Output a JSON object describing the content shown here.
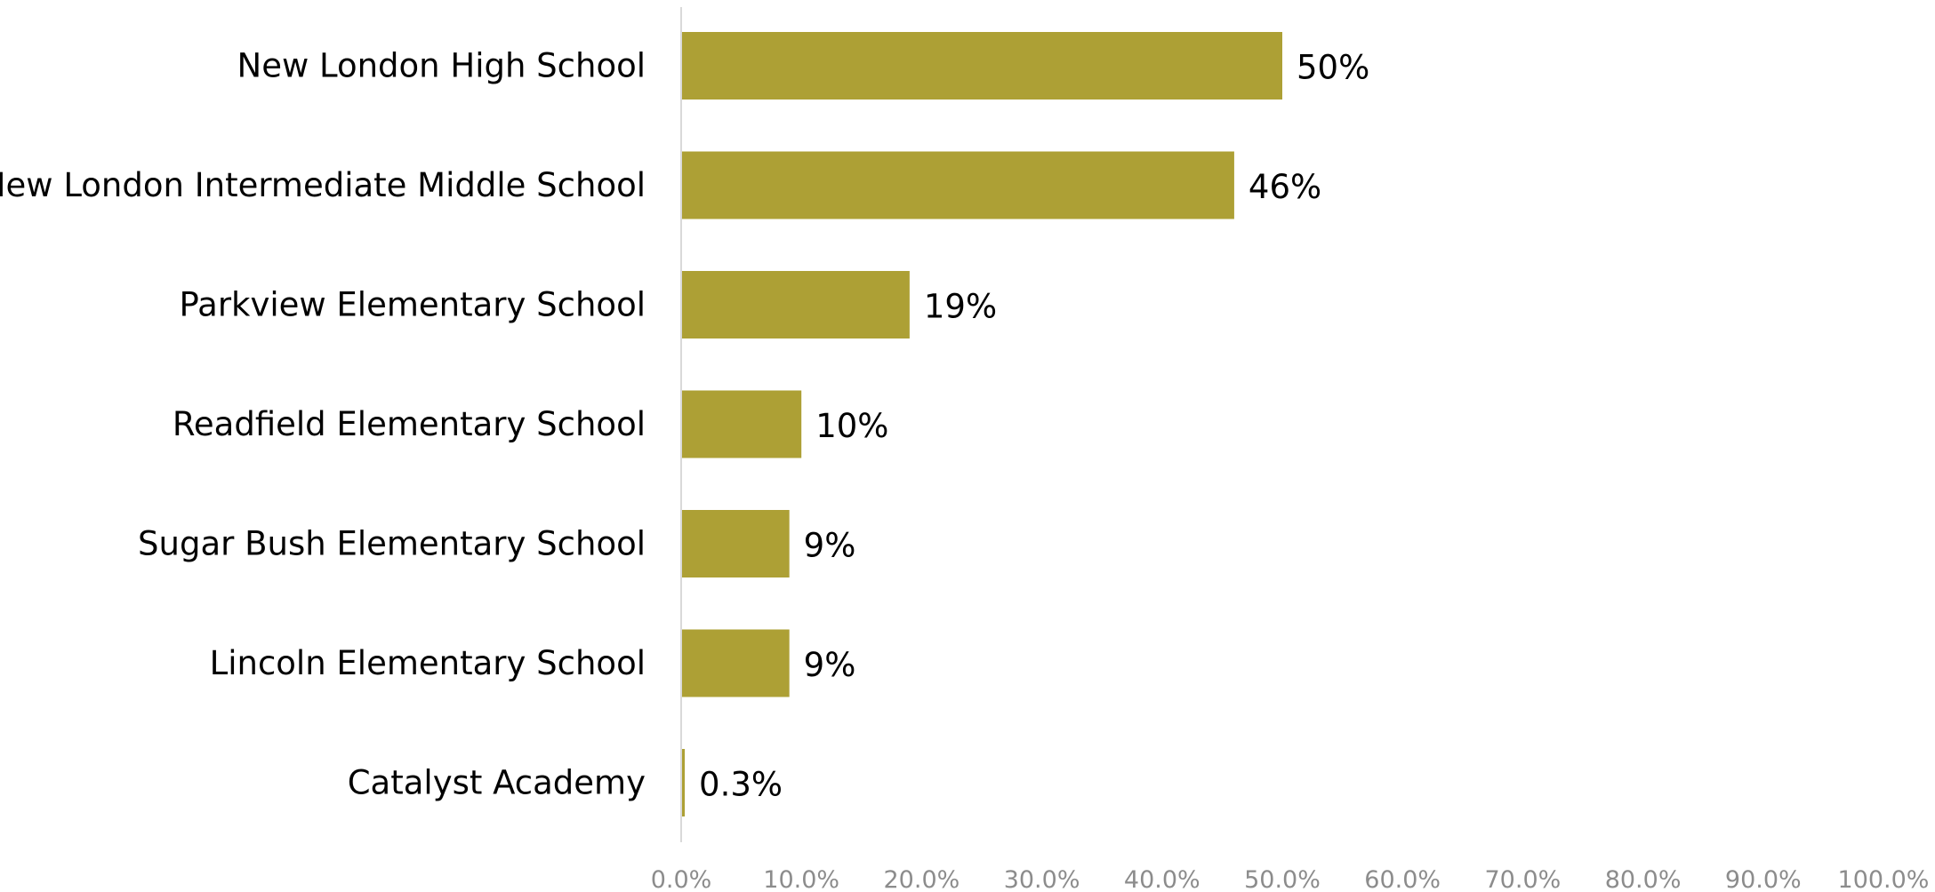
{
  "chart_data": {
    "type": "bar",
    "orientation": "horizontal",
    "categories": [
      "New London High School",
      "New London Intermediate Middle School",
      "Parkview Elementary School",
      "Readfield Elementary School",
      "Sugar Bush Elementary School",
      "Lincoln Elementary School",
      "Catalyst Academy"
    ],
    "values": [
      50,
      46,
      19,
      10,
      9,
      9,
      0.3
    ],
    "data_labels": [
      "50%",
      "46%",
      "19%",
      "10%",
      "9%",
      "9%",
      "0.3%"
    ],
    "xlim": [
      0,
      100
    ],
    "x_ticks": [
      0,
      10,
      20,
      30,
      40,
      50,
      60,
      70,
      80,
      90,
      100
    ],
    "x_tick_labels": [
      "0.0%",
      "10.0%",
      "20.0%",
      "30.0%",
      "40.0%",
      "50.0%",
      "60.0%",
      "70.0%",
      "80.0%",
      "90.0%",
      "100.0%"
    ],
    "title": "",
    "xlabel": "",
    "ylabel": "",
    "grid": false,
    "legend": "none",
    "bar_color": "#ada035",
    "axis_color": "#d9d9d9"
  }
}
